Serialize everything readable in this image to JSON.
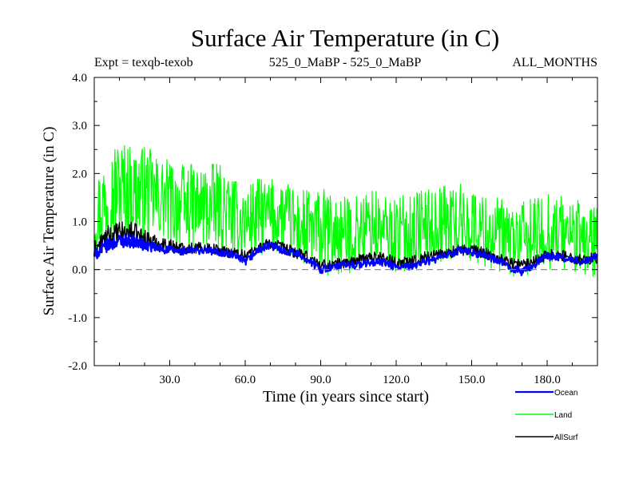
{
  "chart_data": {
    "type": "line",
    "title": "Surface Air Temperature (in C)",
    "subtitle_left": "Expt = texqb-texob",
    "subtitle_center": "525_0_MaBP - 525_0_MaBP",
    "subtitle_right": "ALL_MONTHS",
    "xlabel": "Time (in years since start)",
    "ylabel": "Surface Air Temperature (in C)",
    "xlim": [
      0,
      200
    ],
    "ylim": [
      -2.0,
      4.0
    ],
    "x_ticks": [
      30,
      60,
      90,
      120,
      150,
      180
    ],
    "x_tick_labels": [
      "30.0",
      "60.0",
      "90.0",
      "120.0",
      "150.0",
      "180.0"
    ],
    "y_ticks": [
      -2,
      -1,
      0,
      1,
      2,
      3,
      4
    ],
    "y_tick_labels": [
      "-2.0",
      "-1.0",
      "0.0",
      "1.0",
      "2.0",
      "3.0",
      "4.0"
    ],
    "reference_line": {
      "y": 0.0,
      "style": "dashed",
      "color": "#808080"
    },
    "grid": false,
    "legend": {
      "placement": "bottom-right"
    },
    "series": [
      {
        "name": "Land",
        "color": "#00ff00",
        "x": [
          0,
          5,
          10,
          15,
          20,
          25,
          30,
          35,
          40,
          45,
          50,
          55,
          60,
          65,
          70,
          75,
          80,
          85,
          90,
          95,
          100,
          105,
          110,
          115,
          120,
          125,
          130,
          135,
          140,
          145,
          150,
          155,
          160,
          165,
          170,
          175,
          180,
          185,
          190,
          195,
          200
        ],
        "y": [
          1.1,
          1.5,
          1.7,
          1.6,
          1.6,
          1.5,
          1.4,
          1.3,
          1.3,
          1.3,
          1.3,
          1.1,
          1.0,
          1.1,
          1.1,
          1.1,
          0.9,
          0.8,
          0.8,
          0.7,
          0.7,
          0.8,
          0.9,
          0.8,
          0.7,
          0.8,
          0.9,
          0.9,
          1.0,
          1.0,
          0.9,
          0.8,
          0.7,
          0.6,
          0.6,
          0.7,
          0.8,
          0.8,
          0.7,
          0.6,
          0.6
        ],
        "spread": [
          0.8,
          1.0,
          1.1,
          1.0,
          1.0,
          0.9,
          0.9,
          0.9,
          0.9,
          0.9,
          0.9,
          0.8,
          0.8,
          0.8,
          0.8,
          0.8,
          0.8,
          0.9,
          0.9,
          0.9,
          0.8,
          0.8,
          0.8,
          0.8,
          0.8,
          0.8,
          0.8,
          0.8,
          0.8,
          0.8,
          0.8,
          0.8,
          0.8,
          0.8,
          0.8,
          0.8,
          0.8,
          0.8,
          0.8,
          0.8,
          0.8
        ]
      },
      {
        "name": "AllSurf",
        "color": "#000000",
        "x": [
          0,
          5,
          10,
          15,
          20,
          25,
          30,
          35,
          40,
          45,
          50,
          55,
          60,
          65,
          70,
          75,
          80,
          85,
          90,
          95,
          100,
          105,
          110,
          115,
          120,
          125,
          130,
          135,
          140,
          145,
          150,
          155,
          160,
          165,
          170,
          175,
          180,
          185,
          190,
          195,
          200
        ],
        "y": [
          0.4,
          0.65,
          0.75,
          0.75,
          0.65,
          0.55,
          0.5,
          0.45,
          0.45,
          0.45,
          0.4,
          0.35,
          0.3,
          0.45,
          0.55,
          0.45,
          0.35,
          0.25,
          0.1,
          0.1,
          0.15,
          0.2,
          0.25,
          0.25,
          0.15,
          0.15,
          0.25,
          0.3,
          0.35,
          0.4,
          0.4,
          0.35,
          0.25,
          0.15,
          0.1,
          0.2,
          0.3,
          0.3,
          0.25,
          0.2,
          0.25
        ],
        "spread": [
          0.2,
          0.25,
          0.25,
          0.25,
          0.2,
          0.15,
          0.15,
          0.12,
          0.12,
          0.12,
          0.12,
          0.12,
          0.12,
          0.12,
          0.12,
          0.12,
          0.12,
          0.12,
          0.12,
          0.12,
          0.12,
          0.12,
          0.12,
          0.12,
          0.12,
          0.12,
          0.12,
          0.12,
          0.12,
          0.12,
          0.12,
          0.12,
          0.12,
          0.12,
          0.12,
          0.12,
          0.12,
          0.12,
          0.12,
          0.12,
          0.12
        ]
      },
      {
        "name": "Ocean",
        "color": "#0000ff",
        "x": [
          0,
          5,
          10,
          15,
          20,
          25,
          30,
          35,
          40,
          45,
          50,
          55,
          60,
          65,
          70,
          75,
          80,
          85,
          90,
          95,
          100,
          105,
          110,
          115,
          120,
          125,
          130,
          135,
          140,
          145,
          150,
          155,
          160,
          165,
          170,
          175,
          180,
          185,
          190,
          195,
          200
        ],
        "y": [
          0.3,
          0.5,
          0.6,
          0.6,
          0.5,
          0.45,
          0.4,
          0.38,
          0.4,
          0.4,
          0.35,
          0.3,
          0.15,
          0.4,
          0.5,
          0.4,
          0.35,
          0.2,
          0.0,
          0.05,
          0.1,
          0.1,
          0.15,
          0.15,
          0.05,
          0.05,
          0.15,
          0.2,
          0.3,
          0.4,
          0.35,
          0.3,
          0.2,
          0.05,
          -0.05,
          0.1,
          0.3,
          0.25,
          0.2,
          0.15,
          0.3
        ],
        "spread": [
          0.12,
          0.14,
          0.14,
          0.14,
          0.12,
          0.1,
          0.1,
          0.08,
          0.08,
          0.08,
          0.08,
          0.08,
          0.08,
          0.08,
          0.08,
          0.08,
          0.08,
          0.08,
          0.08,
          0.08,
          0.08,
          0.08,
          0.08,
          0.08,
          0.08,
          0.08,
          0.08,
          0.08,
          0.08,
          0.08,
          0.08,
          0.08,
          0.08,
          0.08,
          0.08,
          0.08,
          0.08,
          0.08,
          0.08,
          0.08,
          0.08
        ]
      }
    ]
  }
}
